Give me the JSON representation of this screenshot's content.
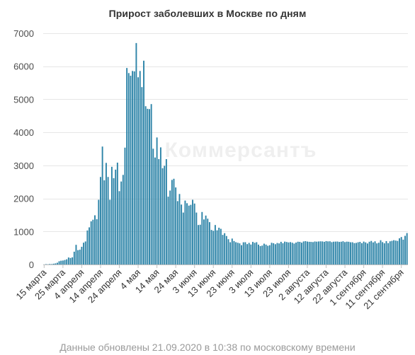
{
  "chart_data": {
    "type": "bar",
    "title": "Прирост заболевших в Москве по дням",
    "xlabel": "",
    "ylabel": "",
    "ylim": [
      0,
      7000
    ],
    "yticks": [
      0,
      1000,
      2000,
      3000,
      4000,
      5000,
      6000,
      7000
    ],
    "grid": "horizontal",
    "bar_color": "#2d84a8",
    "x_tick_labels": [
      "15 марта",
      "25 марта",
      "4 апреля",
      "14 апреля",
      "24 апреля",
      "4 мая",
      "14 мая",
      "24 мая",
      "3 июня",
      "13 июня",
      "23 июня",
      "3 июля",
      "13 июля",
      "23 июля",
      "2 августа",
      "12 августа",
      "22 августа",
      "1 сентября",
      "11 сентября",
      "21 сентября"
    ],
    "tick_interval_days": 10,
    "first_date": "15 марта",
    "values": [
      3,
      10,
      6,
      15,
      11,
      24,
      33,
      53,
      98,
      114,
      120,
      136,
      157,
      212,
      197,
      217,
      387,
      595,
      434,
      448,
      536,
      660,
      697,
      1030,
      1124,
      1306,
      1355,
      1489,
      1370,
      1959,
      2649,
      3570,
      2548,
      3075,
      2649,
      1959,
      2957,
      2612,
      2871,
      3083,
      2220,
      2512,
      2712,
      3537,
      5948,
      5795,
      5714,
      5858,
      5846,
      6703,
      5667,
      5858,
      5369,
      6169,
      4791,
      4712,
      4703,
      4855,
      3505,
      3238,
      3845,
      3190,
      3545,
      2913,
      2988,
      3190,
      2054,
      2238,
      2560,
      2595,
      2332,
      1918,
      2134,
      1814,
      1572,
      1935,
      1855,
      1782,
      1806,
      1959,
      1845,
      1572,
      1195,
      1204,
      1589,
      1363,
      1481,
      1386,
      1282,
      1046,
      1020,
      1195,
      1035,
      1113,
      1080,
      896,
      948,
      862,
      766,
      673,
      785,
      710,
      675,
      658,
      640,
      585,
      672,
      674,
      617,
      654,
      604,
      684,
      657,
      674,
      601,
      556,
      573,
      630,
      602,
      566,
      584,
      657,
      643,
      614,
      651,
      638,
      686,
      643,
      692,
      681,
      668,
      677,
      659,
      633,
      664,
      689,
      685,
      661,
      698,
      707,
      694,
      686,
      684,
      678,
      696,
      691,
      697,
      701,
      698,
      687,
      708,
      699,
      702,
      676,
      690,
      693,
      695,
      683,
      689,
      703,
      678,
      691,
      688,
      673,
      673,
      647,
      654,
      673,
      685,
      645,
      693,
      669,
      636,
      689,
      713,
      668,
      701,
      639,
      659,
      734,
      677,
      641,
      708,
      646,
      702,
      716,
      735,
      724,
      714,
      793,
      831,
      752,
      867,
      951
    ]
  },
  "watermark": "Коммерсантъ",
  "footer": "Данные обновлены 21.09.2020 в 10:38 по московскому времени"
}
